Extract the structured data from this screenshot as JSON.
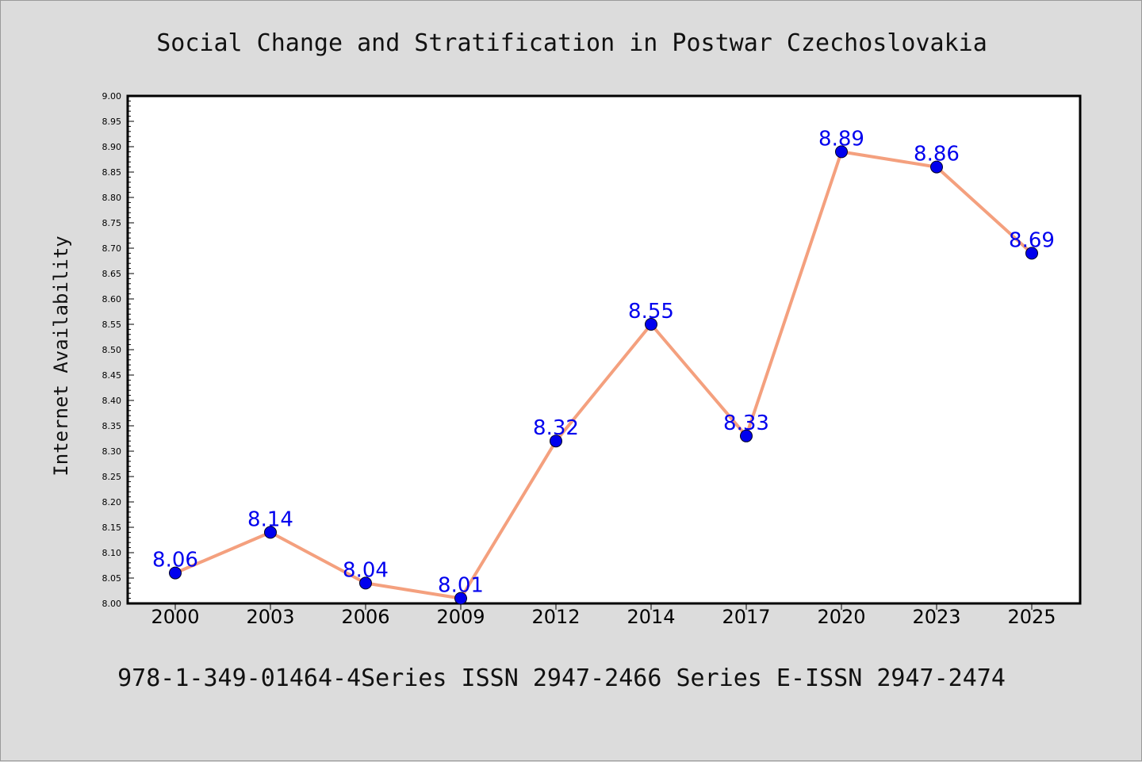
{
  "chart_data": {
    "type": "line",
    "title": "Social Change and Stratification in Postwar Czechoslovakia",
    "xlabel": "",
    "ylabel": "Internet Availability",
    "categories": [
      "2000",
      "2003",
      "2006",
      "2009",
      "2012",
      "2014",
      "2017",
      "2020",
      "2023",
      "2025"
    ],
    "series": [
      {
        "values": [
          8.06,
          8.14,
          8.04,
          8.01,
          8.32,
          8.55,
          8.33,
          8.89,
          8.86,
          8.69
        ],
        "data_labels": [
          "8.06",
          "8.14",
          "8.04",
          "8.01",
          "8.32",
          "8.55",
          "8.33",
          "8.89",
          "8.86",
          "8.69"
        ],
        "line_color": "#f4a07e",
        "marker_color": "#0000ee"
      }
    ],
    "ylim": [
      8.0,
      9.0
    ],
    "y_ticks": [
      "8.00",
      "8.05",
      "8.10",
      "8.15",
      "8.20",
      "8.25",
      "8.30",
      "8.35",
      "8.40",
      "8.45",
      "8.50",
      "8.55",
      "8.60",
      "8.65",
      "8.70",
      "8.75",
      "8.80",
      "8.85",
      "8.90",
      "8.95",
      "9.00"
    ],
    "grid": false,
    "legend": "none",
    "footer": "978-1-349-01464-4Series ISSN 2947-2466 Series E-ISSN 2947-2474"
  },
  "colors": {
    "background": "#dcdcdc",
    "plot_background": "#ffffff",
    "line": "#f4a07e",
    "marker": "#0000ee",
    "label": "#0000ee"
  }
}
